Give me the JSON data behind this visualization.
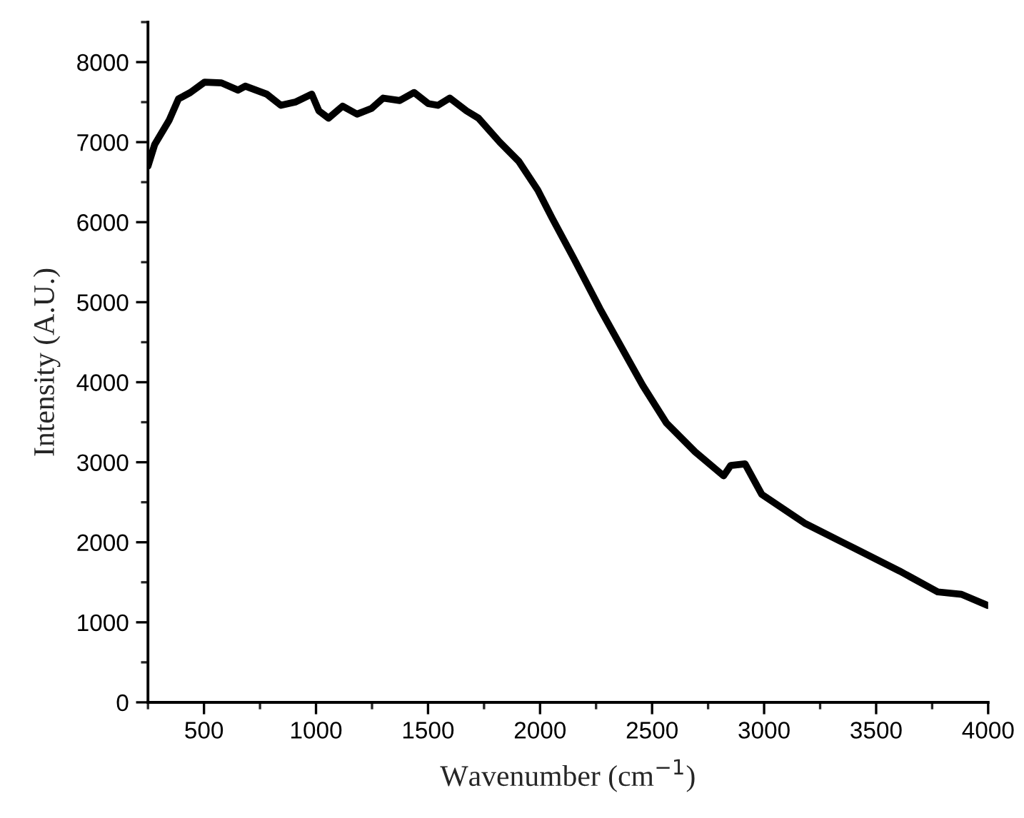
{
  "chart_data": {
    "type": "line",
    "xlabel": "Wavenumber (cm$^{−1}$)",
    "ylabel": "Intensity (A.U.)",
    "series": [
      {
        "color": "#000000",
        "x": [
          250,
          280,
          344,
          386,
          439,
          503,
          578,
          652,
          684,
          780,
          843,
          907,
          981,
          1013,
          1056,
          1119,
          1183,
          1247,
          1300,
          1374,
          1438,
          1502,
          1544,
          1597,
          1672,
          1725,
          1820,
          1905,
          1990,
          2054,
          2150,
          2267,
          2458,
          2564,
          2692,
          2819,
          2851,
          2915,
          2989,
          3180,
          3350,
          3605,
          3775,
          3881,
          3998
        ],
        "values": [
          6700,
          6970,
          7270,
          7540,
          7620,
          7750,
          7740,
          7650,
          7700,
          7600,
          7460,
          7500,
          7600,
          7390,
          7300,
          7450,
          7350,
          7420,
          7550,
          7520,
          7620,
          7480,
          7460,
          7550,
          7390,
          7300,
          7000,
          6760,
          6400,
          6050,
          5550,
          4920,
          3960,
          3490,
          3130,
          2830,
          2960,
          2980,
          2600,
          2240,
          2000,
          1640,
          1380,
          1350,
          1210
        ]
      }
    ],
    "xlim": [
      250,
      4000
    ],
    "xticks": [
      500,
      1000,
      1500,
      2000,
      2500,
      3000,
      3500,
      4000
    ],
    "ylim": [
      0,
      8500
    ],
    "yticks": [
      0,
      1000,
      2000,
      3000,
      4000,
      5000,
      6000,
      7000,
      8000
    ],
    "grid": false,
    "legend": false,
    "marker": "none",
    "line_style": "solid"
  }
}
